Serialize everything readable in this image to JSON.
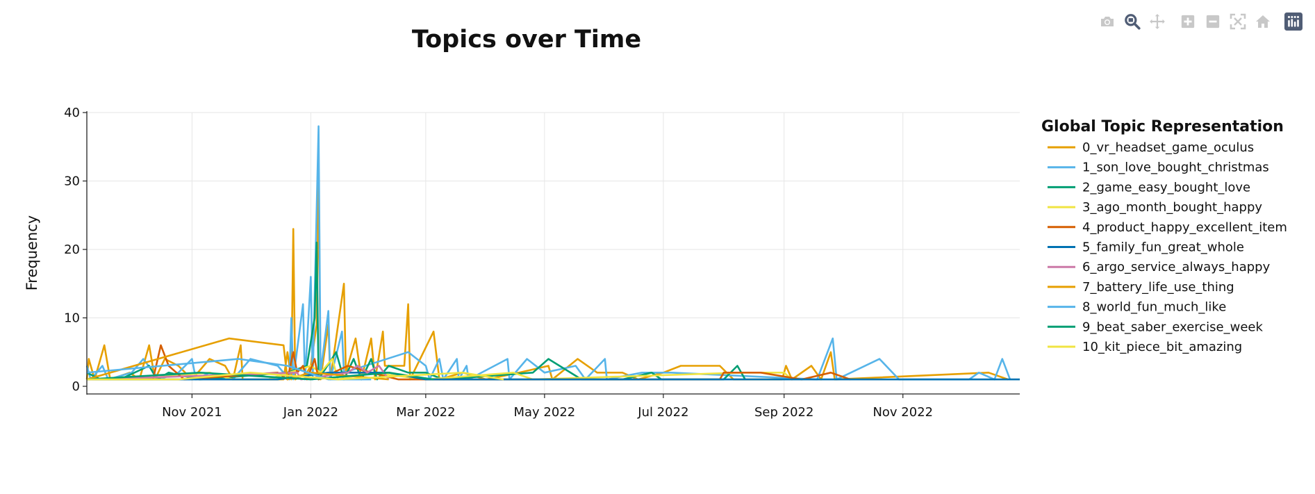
{
  "chart_data": {
    "type": "line",
    "title": "Topics over Time",
    "xlabel": "",
    "ylabel": "Frequency",
    "ylim": [
      0,
      40
    ],
    "yticks": [
      0,
      10,
      20,
      30,
      40
    ],
    "xlim": [
      "2021-09-08",
      "2022-12-31"
    ],
    "xticks": [
      {
        "date": "2021-11-01",
        "label": "Nov 2021"
      },
      {
        "date": "2022-01-01",
        "label": "Jan 2022"
      },
      {
        "date": "2022-03-01",
        "label": "Mar 2022"
      },
      {
        "date": "2022-05-01",
        "label": "May 2022"
      },
      {
        "date": "2022-07-01",
        "label": "Jul 2022"
      },
      {
        "date": "2022-09-01",
        "label": "Sep 2022"
      },
      {
        "date": "2022-11-01",
        "label": "Nov 2022"
      }
    ],
    "grid": true,
    "legend": {
      "title": "Global Topic Representation",
      "position": "right"
    },
    "series": [
      {
        "name": "0_vr_headset_game_oculus",
        "color": "#E69F00",
        "points": [
          [
            "2021-09-08",
            1
          ],
          [
            "2021-09-09",
            4
          ],
          [
            "2021-09-12",
            1
          ],
          [
            "2021-09-17",
            6
          ],
          [
            "2021-09-20",
            1
          ],
          [
            "2021-09-30",
            2
          ],
          [
            "2021-10-05",
            1
          ],
          [
            "2021-10-10",
            6
          ],
          [
            "2021-10-13",
            1
          ],
          [
            "2021-10-18",
            4
          ],
          [
            "2021-10-25",
            3
          ],
          [
            "2021-11-01",
            1
          ],
          [
            "2021-11-10",
            4
          ],
          [
            "2021-11-18",
            3
          ],
          [
            "2021-11-22",
            1
          ],
          [
            "2021-11-26",
            6
          ],
          [
            "2021-11-27",
            1
          ],
          [
            "2021-12-18",
            1
          ],
          [
            "2021-12-20",
            5
          ],
          [
            "2021-12-22",
            1
          ],
          [
            "2021-12-23",
            23
          ],
          [
            "2021-12-24",
            1
          ],
          [
            "2021-12-30",
            2
          ],
          [
            "2022-01-01",
            3
          ],
          [
            "2022-01-04",
            9
          ],
          [
            "2022-01-05",
            30
          ],
          [
            "2022-01-06",
            1
          ],
          [
            "2022-01-10",
            9
          ],
          [
            "2022-01-11",
            1
          ],
          [
            "2022-01-18",
            15
          ],
          [
            "2022-01-19",
            2
          ],
          [
            "2022-01-24",
            7
          ],
          [
            "2022-01-27",
            1
          ],
          [
            "2022-02-01",
            7
          ],
          [
            "2022-02-03",
            1
          ],
          [
            "2022-02-07",
            8
          ],
          [
            "2022-02-08",
            3
          ],
          [
            "2022-02-18",
            3
          ],
          [
            "2022-02-20",
            12
          ],
          [
            "2022-02-21",
            1
          ],
          [
            "2022-03-05",
            8
          ],
          [
            "2022-03-08",
            1
          ],
          [
            "2022-03-20",
            2
          ],
          [
            "2022-04-01",
            1
          ],
          [
            "2022-04-18",
            2
          ],
          [
            "2022-05-03",
            3
          ],
          [
            "2022-05-05",
            1
          ],
          [
            "2022-05-18",
            4
          ],
          [
            "2022-05-28",
            2
          ],
          [
            "2022-06-10",
            2
          ],
          [
            "2022-06-18",
            1
          ],
          [
            "2022-07-01",
            2
          ],
          [
            "2022-07-10",
            3
          ],
          [
            "2022-07-30",
            3
          ],
          [
            "2022-08-06",
            1
          ],
          [
            "2022-08-31",
            1
          ],
          [
            "2022-09-02",
            3
          ],
          [
            "2022-09-05",
            1
          ],
          [
            "2022-09-15",
            3
          ],
          [
            "2022-09-20",
            1
          ],
          [
            "2022-09-25",
            5
          ],
          [
            "2022-09-27",
            1
          ],
          [
            "2022-12-15",
            2
          ],
          [
            "2022-12-25",
            1
          ]
        ]
      },
      {
        "name": "1_son_love_bought_christmas",
        "color": "#56B4E9",
        "points": [
          [
            "2021-09-08",
            3
          ],
          [
            "2021-09-10",
            1
          ],
          [
            "2021-09-16",
            3
          ],
          [
            "2021-09-19",
            1
          ],
          [
            "2021-10-01",
            2
          ],
          [
            "2021-10-07",
            4
          ],
          [
            "2021-10-15",
            1
          ],
          [
            "2021-10-25",
            2
          ],
          [
            "2021-11-01",
            4
          ],
          [
            "2021-11-03",
            1
          ],
          [
            "2021-11-10",
            2
          ],
          [
            "2021-11-22",
            1
          ],
          [
            "2021-12-01",
            4
          ],
          [
            "2021-12-15",
            3
          ],
          [
            "2021-12-21",
            1
          ],
          [
            "2021-12-22",
            10
          ],
          [
            "2021-12-23",
            1
          ],
          [
            "2021-12-28",
            12
          ],
          [
            "2021-12-29",
            1
          ],
          [
            "2022-01-01",
            16
          ],
          [
            "2022-01-02",
            1
          ],
          [
            "2022-01-05",
            38
          ],
          [
            "2022-01-06",
            2
          ],
          [
            "2022-01-10",
            11
          ],
          [
            "2022-01-11",
            1
          ],
          [
            "2022-01-17",
            8
          ],
          [
            "2022-01-18",
            2
          ],
          [
            "2022-02-20",
            5
          ],
          [
            "2022-03-01",
            3
          ],
          [
            "2022-03-03",
            1
          ],
          [
            "2022-03-08",
            4
          ],
          [
            "2022-03-10",
            1
          ],
          [
            "2022-03-17",
            4
          ],
          [
            "2022-03-18",
            1
          ],
          [
            "2022-03-22",
            3
          ],
          [
            "2022-03-23",
            1
          ],
          [
            "2022-04-12",
            4
          ],
          [
            "2022-04-13",
            1
          ],
          [
            "2022-04-22",
            4
          ],
          [
            "2022-05-01",
            2
          ],
          [
            "2022-05-17",
            3
          ],
          [
            "2022-05-22",
            1
          ],
          [
            "2022-06-01",
            4
          ],
          [
            "2022-06-02",
            1
          ],
          [
            "2022-06-20",
            2
          ],
          [
            "2022-07-05",
            2
          ],
          [
            "2022-09-18",
            1
          ],
          [
            "2022-09-26",
            7
          ],
          [
            "2022-09-28",
            1
          ],
          [
            "2022-10-20",
            4
          ],
          [
            "2022-10-30",
            1
          ],
          [
            "2022-12-05",
            1
          ],
          [
            "2022-12-10",
            2
          ],
          [
            "2022-12-18",
            1
          ],
          [
            "2022-12-22",
            4
          ],
          [
            "2022-12-26",
            1
          ]
        ]
      },
      {
        "name": "2_game_easy_bought_love",
        "color": "#009E73",
        "points": [
          [
            "2021-09-08",
            2
          ],
          [
            "2021-09-15",
            1
          ],
          [
            "2021-09-25",
            1
          ],
          [
            "2021-10-10",
            3
          ],
          [
            "2021-10-14",
            1
          ],
          [
            "2021-10-20",
            2
          ],
          [
            "2021-11-05",
            1
          ],
          [
            "2021-12-20",
            2
          ],
          [
            "2021-12-30",
            3
          ],
          [
            "2022-01-03",
            10
          ],
          [
            "2022-01-04",
            21
          ],
          [
            "2022-01-05",
            1
          ],
          [
            "2022-01-14",
            5
          ],
          [
            "2022-01-18",
            1
          ],
          [
            "2022-01-23",
            4
          ],
          [
            "2022-01-27",
            1
          ],
          [
            "2022-02-01",
            4
          ],
          [
            "2022-02-04",
            1
          ],
          [
            "2022-02-10",
            3
          ],
          [
            "2022-02-20",
            2
          ],
          [
            "2022-03-01",
            2
          ],
          [
            "2022-03-10",
            1
          ],
          [
            "2022-04-25",
            2
          ],
          [
            "2022-05-03",
            4
          ],
          [
            "2022-05-20",
            1
          ],
          [
            "2022-06-10",
            1
          ],
          [
            "2022-06-25",
            2
          ],
          [
            "2022-06-30",
            1
          ],
          [
            "2022-08-01",
            1
          ],
          [
            "2022-08-08",
            3
          ],
          [
            "2022-08-12",
            1
          ]
        ]
      },
      {
        "name": "3_ago_month_bought_happy",
        "color": "#F0E442",
        "points": [
          [
            "2021-09-08",
            1
          ],
          [
            "2021-10-01",
            1
          ],
          [
            "2021-11-10",
            2
          ],
          [
            "2021-11-22",
            1
          ],
          [
            "2021-12-10",
            1
          ],
          [
            "2022-01-01",
            3
          ],
          [
            "2022-01-06",
            2
          ],
          [
            "2022-01-12",
            4
          ],
          [
            "2022-01-15",
            1
          ],
          [
            "2022-02-01",
            2
          ],
          [
            "2022-03-01",
            1
          ],
          [
            "2022-04-15",
            2
          ],
          [
            "2022-04-25",
            1
          ],
          [
            "2022-08-10",
            2
          ],
          [
            "2022-09-01",
            2
          ],
          [
            "2022-09-05",
            1
          ]
        ]
      },
      {
        "name": "4_product_happy_excellent_item",
        "color": "#D55E00",
        "points": [
          [
            "2021-09-08",
            1
          ],
          [
            "2021-10-12",
            1
          ],
          [
            "2021-10-16",
            6
          ],
          [
            "2021-10-20",
            3
          ],
          [
            "2021-10-28",
            1
          ],
          [
            "2021-12-15",
            2
          ],
          [
            "2021-12-20",
            1
          ],
          [
            "2021-12-23",
            5
          ],
          [
            "2021-12-25",
            2
          ],
          [
            "2021-12-28",
            3
          ],
          [
            "2021-12-30",
            1
          ],
          [
            "2022-01-03",
            4
          ],
          [
            "2022-01-05",
            1
          ],
          [
            "2022-01-20",
            3
          ],
          [
            "2022-02-01",
            2
          ],
          [
            "2022-02-15",
            1
          ],
          [
            "2022-07-30",
            1
          ],
          [
            "2022-08-01",
            2
          ],
          [
            "2022-08-20",
            2
          ],
          [
            "2022-09-10",
            1
          ],
          [
            "2022-09-25",
            2
          ],
          [
            "2022-10-05",
            1
          ]
        ]
      },
      {
        "name": "5_family_fun_great_whole",
        "color": "#0072B2",
        "points": [
          [
            "2021-09-08",
            1
          ],
          [
            "2021-11-01",
            1
          ],
          [
            "2021-12-15",
            1
          ],
          [
            "2022-01-10",
            2
          ],
          [
            "2022-02-10",
            2
          ],
          [
            "2022-03-01",
            1
          ],
          [
            "2022-04-01",
            1
          ],
          [
            "2022-08-10",
            1
          ],
          [
            "2022-12-31",
            1
          ]
        ]
      },
      {
        "name": "6_argo_service_always_happy",
        "color": "#CC79A7",
        "points": [
          [
            "2021-09-08",
            1
          ],
          [
            "2021-12-25",
            2
          ],
          [
            "2021-12-27",
            1
          ],
          [
            "2022-01-20",
            2
          ],
          [
            "2022-01-25",
            3
          ],
          [
            "2022-01-30",
            2
          ],
          [
            "2022-02-05",
            3
          ],
          [
            "2022-02-10",
            1
          ]
        ]
      },
      {
        "name": "7_battery_life_use_thing",
        "color": "#E69F00",
        "points": [
          [
            "2021-09-08",
            1
          ],
          [
            "2021-11-20",
            7
          ],
          [
            "2021-12-18",
            6
          ],
          [
            "2021-12-20",
            1
          ],
          [
            "2022-01-01",
            2
          ],
          [
            "2022-02-10",
            1
          ]
        ]
      },
      {
        "name": "8_world_fun_much_like",
        "color": "#56B4E9",
        "points": [
          [
            "2021-09-08",
            2
          ],
          [
            "2021-11-25",
            4
          ],
          [
            "2021-12-20",
            3
          ],
          [
            "2022-01-10",
            1
          ],
          [
            "2022-02-01",
            1
          ]
        ]
      },
      {
        "name": "9_beat_saber_exercise_week",
        "color": "#009E73",
        "points": [
          [
            "2021-09-08",
            1
          ],
          [
            "2021-11-05",
            2
          ],
          [
            "2022-01-01",
            1
          ],
          [
            "2022-02-10",
            2
          ],
          [
            "2022-03-05",
            1
          ]
        ]
      },
      {
        "name": "10_kit_piece_bit_amazing",
        "color": "#F0E442",
        "points": [
          [
            "2021-09-08",
            1
          ],
          [
            "2021-10-25",
            1
          ],
          [
            "2021-12-01",
            2
          ],
          [
            "2022-01-15",
            1
          ],
          [
            "2022-03-20",
            2
          ],
          [
            "2022-04-10",
            1
          ]
        ]
      }
    ]
  },
  "modebar": [
    {
      "name": "camera-icon",
      "title": "Download plot as a png"
    },
    {
      "name": "zoom-icon",
      "title": "Zoom"
    },
    {
      "name": "pan-icon",
      "title": "Pan"
    },
    {
      "name": "zoom-in-icon",
      "title": "Zoom in"
    },
    {
      "name": "zoom-out-icon",
      "title": "Zoom out"
    },
    {
      "name": "autoscale-icon",
      "title": "Autoscale"
    },
    {
      "name": "home-icon",
      "title": "Reset axes"
    },
    {
      "name": "plotly-logo-icon",
      "title": "Produced with Plotly"
    }
  ]
}
